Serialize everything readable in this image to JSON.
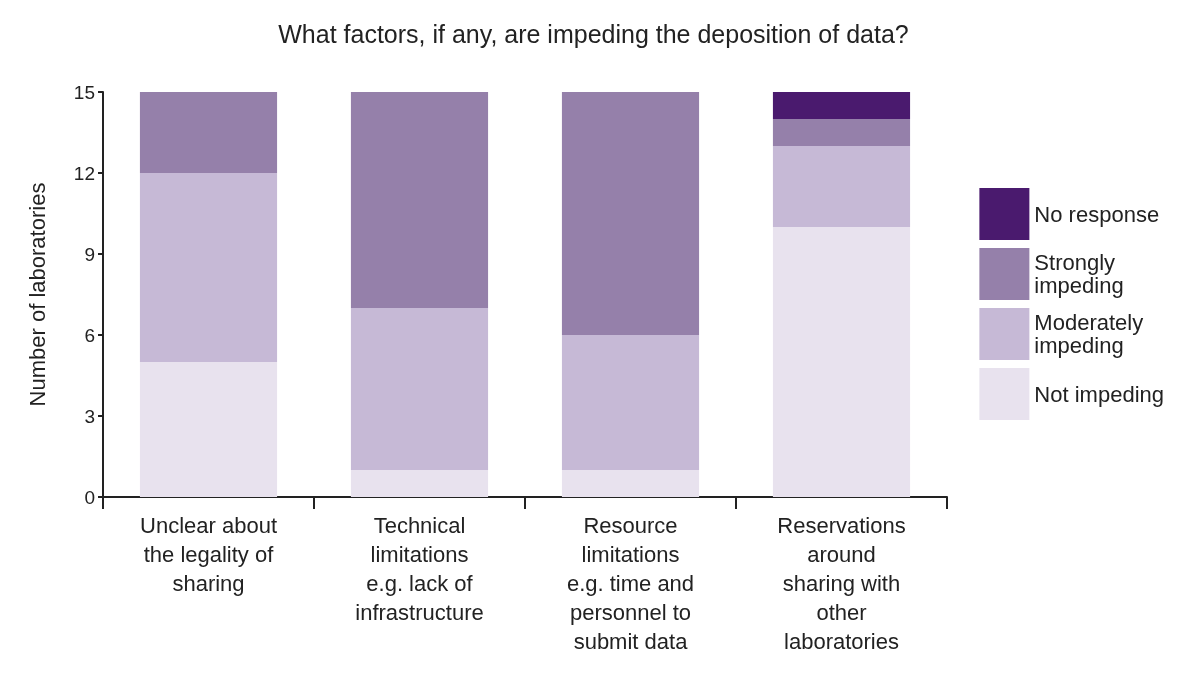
{
  "chart_data": {
    "type": "bar",
    "title": "What factors, if any, are impeding the deposition of data?",
    "ylabel": "Number of laboratories",
    "categories": [
      "Unclear about\nthe legality of\nsharing",
      "Technical\nlimitations\ne.g. lack of\ninfrastructure",
      "Resource\nlimitations\ne.g. time and\npersonnel to\nsubmit data",
      "Reservations\naround\nsharing with\nother\nlaboratories"
    ],
    "series": [
      {
        "name": "Not impeding",
        "color": "#e8e2ee",
        "values": [
          5,
          1,
          1,
          10
        ]
      },
      {
        "name": "Moderately\nimpeding",
        "color": "#c6b9d6",
        "values": [
          7,
          6,
          5,
          3
        ]
      },
      {
        "name": "Strongly\nimpeding",
        "color": "#9580aa",
        "values": [
          3,
          8,
          9,
          1
        ]
      },
      {
        "name": "No response",
        "color": "#4a1a6e",
        "values": [
          0,
          0,
          0,
          1
        ]
      }
    ],
    "stacked": true,
    "ylim": [
      0,
      15
    ],
    "yticks": [
      0,
      3,
      6,
      9,
      12,
      15
    ],
    "grid": false,
    "legend": "right"
  }
}
